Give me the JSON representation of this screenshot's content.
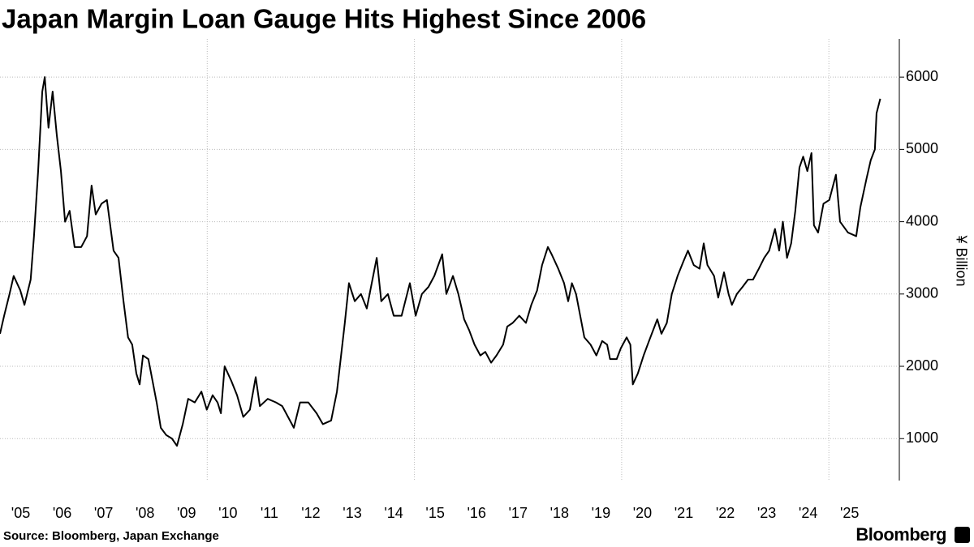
{
  "chart_data": {
    "type": "line",
    "title": "Japan Margin Loan Gauge Hits Highest Since 2006",
    "ylabel": "¥ Billion",
    "source": "Source: Bloomberg, Japan Exchange",
    "logo": "Bloomberg",
    "color": "#000000",
    "x": [
      2005.0,
      2005.1,
      2005.23,
      2005.33,
      2005.49,
      2005.59,
      2005.74,
      2005.82,
      2005.92,
      2006.02,
      2006.08,
      2006.17,
      2006.27,
      2006.37,
      2006.47,
      2006.57,
      2006.68,
      2006.8,
      2006.96,
      2007.1,
      2007.21,
      2007.31,
      2007.45,
      2007.58,
      2007.74,
      2007.86,
      2007.98,
      2008.09,
      2008.19,
      2008.29,
      2008.37,
      2008.45,
      2008.58,
      2008.68,
      2008.78,
      2008.88,
      2009.01,
      2009.15,
      2009.27,
      2009.41,
      2009.54,
      2009.7,
      2009.86,
      2009.99,
      2010.13,
      2010.25,
      2010.33,
      2010.42,
      2010.58,
      2010.72,
      2010.87,
      2011.03,
      2011.17,
      2011.27,
      2011.46,
      2011.66,
      2011.81,
      2011.95,
      2012.09,
      2012.24,
      2012.44,
      2012.64,
      2012.79,
      2012.99,
      2013.13,
      2013.22,
      2013.32,
      2013.42,
      2013.56,
      2013.71,
      2013.85,
      2013.97,
      2014.09,
      2014.2,
      2014.36,
      2014.5,
      2014.69,
      2014.89,
      2015.03,
      2015.18,
      2015.34,
      2015.48,
      2015.67,
      2015.77,
      2015.93,
      2016.06,
      2016.2,
      2016.32,
      2016.45,
      2016.59,
      2016.71,
      2016.85,
      2016.98,
      2017.14,
      2017.24,
      2017.37,
      2017.53,
      2017.69,
      2017.82,
      2017.96,
      2018.08,
      2018.22,
      2018.31,
      2018.47,
      2018.61,
      2018.71,
      2018.8,
      2018.9,
      2019.0,
      2019.1,
      2019.25,
      2019.39,
      2019.53,
      2019.65,
      2019.72,
      2019.88,
      2019.98,
      2020.12,
      2020.21,
      2020.27,
      2020.39,
      2020.53,
      2020.66,
      2020.86,
      2020.96,
      2021.09,
      2021.21,
      2021.35,
      2021.49,
      2021.6,
      2021.74,
      2021.88,
      2021.98,
      2022.07,
      2022.23,
      2022.33,
      2022.47,
      2022.58,
      2022.66,
      2022.78,
      2022.92,
      2023.05,
      2023.17,
      2023.31,
      2023.44,
      2023.56,
      2023.7,
      2023.8,
      2023.89,
      2023.99,
      2024.09,
      2024.19,
      2024.29,
      2024.38,
      2024.48,
      2024.58,
      2024.64,
      2024.74,
      2024.87,
      2025.01,
      2025.17,
      2025.27,
      2025.46,
      2025.66,
      2025.76,
      2025.91,
      2026.01,
      2026.11,
      2026.15,
      2026.24
    ],
    "values": [
      2450,
      2700,
      3000,
      3250,
      3050,
      2850,
      3200,
      3800,
      4700,
      5800,
      6000,
      5300,
      5800,
      5200,
      4700,
      4000,
      4150,
      3650,
      3650,
      3800,
      4500,
      4100,
      4250,
      4300,
      3600,
      3500,
      2900,
      2400,
      2300,
      1900,
      1750,
      2150,
      2100,
      1800,
      1500,
      1150,
      1050,
      1000,
      900,
      1200,
      1550,
      1500,
      1650,
      1400,
      1600,
      1500,
      1350,
      2000,
      1800,
      1600,
      1300,
      1400,
      1850,
      1450,
      1550,
      1500,
      1450,
      1300,
      1150,
      1500,
      1500,
      1350,
      1200,
      1250,
      1650,
      2100,
      2600,
      3150,
      2900,
      3000,
      2800,
      3150,
      3500,
      2900,
      3000,
      2700,
      2700,
      3150,
      2700,
      3000,
      3100,
      3250,
      3550,
      3000,
      3250,
      3000,
      2650,
      2500,
      2300,
      2150,
      2200,
      2050,
      2150,
      2300,
      2550,
      2600,
      2700,
      2600,
      2850,
      3050,
      3400,
      3650,
      3550,
      3350,
      3150,
      2900,
      3150,
      3000,
      2700,
      2400,
      2300,
      2150,
      2350,
      2300,
      2100,
      2100,
      2250,
      2400,
      2300,
      1750,
      1900,
      2150,
      2350,
      2650,
      2450,
      2600,
      3000,
      3250,
      3450,
      3600,
      3400,
      3350,
      3700,
      3400,
      3250,
      2950,
      3300,
      3000,
      2850,
      3000,
      3100,
      3200,
      3200,
      3350,
      3500,
      3600,
      3900,
      3600,
      4000,
      3500,
      3700,
      4150,
      4750,
      4900,
      4700,
      4950,
      3950,
      3850,
      4250,
      4300,
      4650,
      4000,
      3850,
      3800,
      4200,
      4600,
      4850,
      5000,
      5500,
      5700
    ],
    "xlim": [
      2005,
      2026.7
    ],
    "xticks": [
      {
        "value": 2005.5,
        "label": "'05"
      },
      {
        "value": 2006.5,
        "label": "'06"
      },
      {
        "value": 2007.5,
        "label": "'07"
      },
      {
        "value": 2008.5,
        "label": "'08"
      },
      {
        "value": 2009.5,
        "label": "'09"
      },
      {
        "value": 2010.5,
        "label": "'10"
      },
      {
        "value": 2011.5,
        "label": "'11"
      },
      {
        "value": 2012.5,
        "label": "'12"
      },
      {
        "value": 2013.5,
        "label": "'13"
      },
      {
        "value": 2014.5,
        "label": "'14"
      },
      {
        "value": 2015.5,
        "label": "'15"
      },
      {
        "value": 2016.5,
        "label": "'16"
      },
      {
        "value": 2017.5,
        "label": "'17"
      },
      {
        "value": 2018.5,
        "label": "'18"
      },
      {
        "value": 2019.5,
        "label": "'19"
      },
      {
        "value": 2020.5,
        "label": "'20"
      },
      {
        "value": 2021.5,
        "label": "'21"
      },
      {
        "value": 2022.5,
        "label": "'22"
      },
      {
        "value": 2023.5,
        "label": "'23"
      },
      {
        "value": 2024.5,
        "label": "'24"
      },
      {
        "value": 2025.5,
        "label": "'25"
      }
    ],
    "xgrid": [
      2010,
      2015,
      2020,
      2025
    ],
    "ylim": [
      420,
      6450
    ],
    "yticks": [
      1000,
      2000,
      3000,
      4000,
      5000,
      6000
    ],
    "grid": true
  }
}
